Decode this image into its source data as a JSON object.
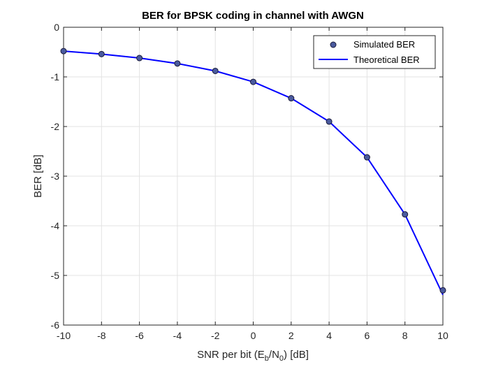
{
  "chart_data": {
    "type": "line",
    "title": "BER for BPSK coding in channel with AWGN",
    "xlabel": {
      "prefix": "SNR per bit (E",
      "sub1": "b",
      "middle": "/N",
      "sub2": "0",
      "suffix": ") [dB]"
    },
    "ylabel": "BER [dB]",
    "xlim": [
      -10,
      10
    ],
    "ylim": [
      -6,
      0
    ],
    "xticks": [
      -10,
      -8,
      -6,
      -4,
      -2,
      0,
      2,
      4,
      6,
      8,
      10
    ],
    "xtick_labels": [
      "-10",
      "-8",
      "-6",
      "-4",
      "-2",
      "0",
      "2",
      "4",
      "6",
      "8",
      "10"
    ],
    "yticks": [
      0,
      -1,
      -2,
      -3,
      -4,
      -5,
      -6
    ],
    "ytick_labels": [
      "0",
      "-1",
      "-2",
      "-3",
      "-4",
      "-5",
      "-6"
    ],
    "grid": true,
    "legend_position": "top-right",
    "series": [
      {
        "name": "Simulated BER",
        "style": "markers",
        "color": "#4a5a9e",
        "edge_color": "#1a1a3a",
        "x": [
          -10,
          -8,
          -6,
          -4,
          -2,
          0,
          2,
          4,
          6,
          8,
          10
        ],
        "y": [
          -0.48,
          -0.54,
          -0.62,
          -0.73,
          -0.88,
          -1.1,
          -1.43,
          -1.9,
          -2.62,
          -3.77,
          -5.3
        ]
      },
      {
        "name": "Theoretical BER",
        "style": "line",
        "color": "#0000ff",
        "x": [
          -10,
          -8,
          -6,
          -4,
          -2,
          0,
          2,
          4,
          6,
          8,
          10
        ],
        "y": [
          -0.48,
          -0.54,
          -0.62,
          -0.73,
          -0.88,
          -1.1,
          -1.43,
          -1.9,
          -2.62,
          -3.77,
          -5.39
        ]
      }
    ]
  }
}
